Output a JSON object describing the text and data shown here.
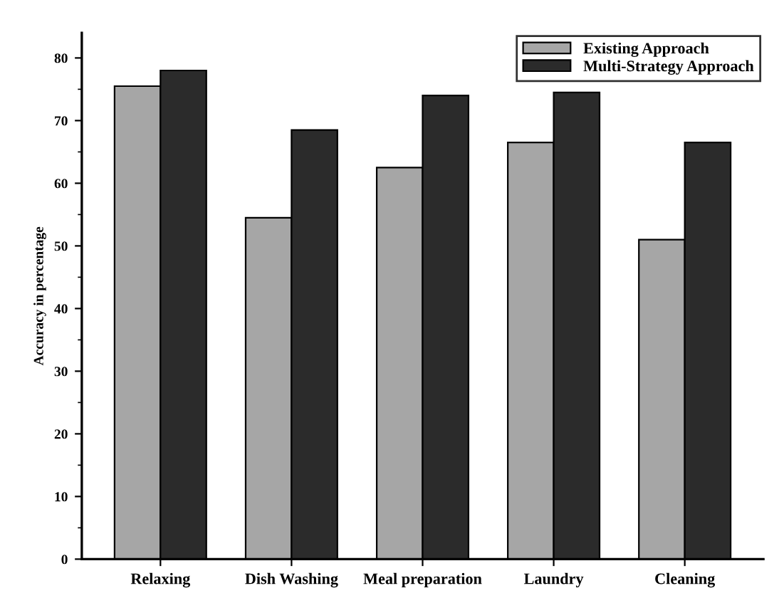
{
  "chart_data": {
    "type": "bar",
    "ylabel": "Accuracy in percentage",
    "categories": [
      "Relaxing",
      "Dish Washing",
      "Meal preparation",
      "Laundry",
      "Cleaning"
    ],
    "series": [
      {
        "name": "Existing Approach",
        "color": "#a6a6a6",
        "values": [
          75.5,
          54.5,
          62.5,
          66.5,
          51
        ]
      },
      {
        "name": "Multi-Strategy Approach",
        "color": "#2b2b2b",
        "values": [
          78,
          68.5,
          74,
          74.5,
          66.5
        ]
      }
    ],
    "ylim": [
      0,
      84
    ],
    "yticks": [
      0,
      10,
      20,
      30,
      40,
      50,
      60,
      70,
      80
    ],
    "grid": false,
    "legend": "top right"
  }
}
